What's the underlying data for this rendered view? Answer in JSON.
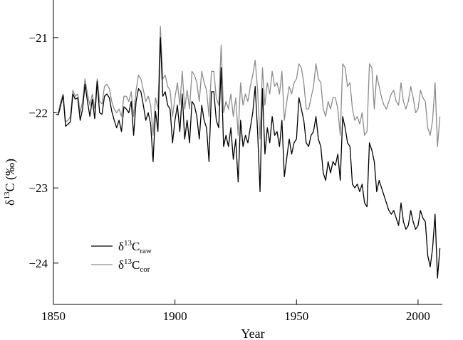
{
  "chart_data": {
    "type": "line",
    "xlabel": "Year",
    "ylabel": {
      "delta": "δ",
      "sup": "13",
      "base": "C (‰)"
    },
    "xlim": [
      1850,
      2010
    ],
    "ylim": [
      -24.55,
      -20.5
    ],
    "x_ticks": [
      1850,
      1900,
      1950,
      2000
    ],
    "x_tick_labels": [
      "1850",
      "1900",
      "1950",
      "2000"
    ],
    "y_ticks": [
      -21,
      -22,
      -23,
      -24
    ],
    "y_tick_labels": [
      "−21",
      "−22",
      "−23",
      "−24"
    ],
    "grid": false,
    "legend_position": "bottom-left",
    "series": [
      {
        "name": "δ13Craw",
        "legend": {
          "delta": "δ",
          "sup": "13",
          "base": "C",
          "sub": "raw"
        },
        "color": "#000000",
        "x": [
          1851,
          1852,
          1853,
          1854,
          1855,
          1856,
          1857,
          1858,
          1859,
          1860,
          1861,
          1862,
          1863,
          1864,
          1865,
          1866,
          1867,
          1868,
          1869,
          1870,
          1871,
          1872,
          1873,
          1874,
          1875,
          1876,
          1877,
          1878,
          1879,
          1880,
          1881,
          1882,
          1883,
          1884,
          1885,
          1886,
          1887,
          1888,
          1889,
          1890,
          1891,
          1892,
          1893,
          1894,
          1895,
          1896,
          1897,
          1898,
          1899,
          1900,
          1901,
          1902,
          1903,
          1904,
          1905,
          1906,
          1907,
          1908,
          1909,
          1910,
          1911,
          1912,
          1913,
          1914,
          1915,
          1916,
          1917,
          1918,
          1919,
          1920,
          1921,
          1922,
          1923,
          1924,
          1925,
          1926,
          1927,
          1928,
          1929,
          1930,
          1931,
          1932,
          1933,
          1934,
          1935,
          1936,
          1937,
          1938,
          1939,
          1940,
          1941,
          1942,
          1943,
          1944,
          1945,
          1946,
          1947,
          1948,
          1949,
          1950,
          1951,
          1952,
          1953,
          1954,
          1955,
          1956,
          1957,
          1958,
          1959,
          1960,
          1961,
          1962,
          1963,
          1964,
          1965,
          1966,
          1967,
          1968,
          1969,
          1970,
          1971,
          1972,
          1973,
          1974,
          1975,
          1976,
          1977,
          1978,
          1979,
          1980,
          1981,
          1982,
          1983,
          1984,
          1985,
          1986,
          1987,
          1988,
          1989,
          1990,
          1991,
          1992,
          1993,
          1994,
          1995,
          1996,
          1997,
          1998,
          1999,
          2000,
          2001,
          2002,
          2003,
          2004,
          2005,
          2006,
          2007,
          2008,
          2009
        ],
        "y": [
          -22.02,
          -22.03,
          -21.9,
          -21.77,
          -22.18,
          -22.15,
          -22.12,
          -21.75,
          -21.82,
          -21.8,
          -22.1,
          -21.95,
          -21.62,
          -21.85,
          -22.05,
          -21.82,
          -22.08,
          -21.58,
          -22.0,
          -22.02,
          -21.78,
          -21.75,
          -21.8,
          -21.98,
          -22.1,
          -22.2,
          -22.1,
          -22.25,
          -21.92,
          -21.95,
          -22.0,
          -21.85,
          -22.3,
          -21.85,
          -21.68,
          -21.72,
          -21.9,
          -22.1,
          -22.0,
          -22.15,
          -22.65,
          -21.98,
          -22.25,
          -21.0,
          -21.78,
          -21.72,
          -21.9,
          -21.95,
          -22.4,
          -22.1,
          -21.9,
          -22.25,
          -21.75,
          -22.35,
          -22.1,
          -22.4,
          -21.85,
          -21.9,
          -22.05,
          -22.35,
          -21.9,
          -22.1,
          -22.2,
          -22.65,
          -21.72,
          -21.72,
          -22.1,
          -22.2,
          -21.4,
          -22.45,
          -22.3,
          -22.45,
          -22.2,
          -22.62,
          -22.35,
          -22.92,
          -22.1,
          -22.45,
          -22.3,
          -22.4,
          -22.2,
          -22.0,
          -21.65,
          -22.25,
          -23.05,
          -21.68,
          -22.55,
          -22.2,
          -22.4,
          -22.05,
          -22.3,
          -22.25,
          -22.45,
          -22.1,
          -22.85,
          -22.6,
          -22.35,
          -22.55,
          -22.4,
          -22.35,
          -21.8,
          -21.95,
          -22.1,
          -22.4,
          -22.45,
          -22.3,
          -22.25,
          -22.05,
          -22.35,
          -22.45,
          -22.8,
          -22.9,
          -22.65,
          -22.8,
          -22.65,
          -22.7,
          -22.55,
          -22.9,
          -22.05,
          -22.2,
          -22.4,
          -22.45,
          -22.95,
          -23.0,
          -22.95,
          -23.05,
          -22.95,
          -23.2,
          -23.25,
          -22.4,
          -22.5,
          -22.65,
          -23.05,
          -22.9,
          -23.0,
          -23.1,
          -23.2,
          -23.3,
          -23.35,
          -23.3,
          -23.4,
          -23.5,
          -23.2,
          -23.45,
          -23.55,
          -23.5,
          -23.3,
          -23.45,
          -23.55,
          -23.5,
          -23.3,
          -23.4,
          -23.45,
          -23.9,
          -24.05,
          -23.8,
          -23.35,
          -24.2,
          -23.8
        ]
      },
      {
        "name": "δ13Ccor",
        "legend": {
          "delta": "δ",
          "sup": "13",
          "base": "C",
          "sub": "cor"
        },
        "color": "#8c8c8c",
        "x": [
          1851,
          1852,
          1853,
          1854,
          1855,
          1856,
          1857,
          1858,
          1859,
          1860,
          1861,
          1862,
          1863,
          1864,
          1865,
          1866,
          1867,
          1868,
          1869,
          1870,
          1871,
          1872,
          1873,
          1874,
          1875,
          1876,
          1877,
          1878,
          1879,
          1880,
          1881,
          1882,
          1883,
          1884,
          1885,
          1886,
          1887,
          1888,
          1889,
          1890,
          1891,
          1892,
          1893,
          1894,
          1895,
          1896,
          1897,
          1898,
          1899,
          1900,
          1901,
          1902,
          1903,
          1904,
          1905,
          1906,
          1907,
          1908,
          1909,
          1910,
          1911,
          1912,
          1913,
          1914,
          1915,
          1916,
          1917,
          1918,
          1919,
          1920,
          1921,
          1922,
          1923,
          1924,
          1925,
          1926,
          1927,
          1928,
          1929,
          1930,
          1931,
          1932,
          1933,
          1934,
          1935,
          1936,
          1937,
          1938,
          1939,
          1940,
          1941,
          1942,
          1943,
          1944,
          1945,
          1946,
          1947,
          1948,
          1949,
          1950,
          1951,
          1952,
          1953,
          1954,
          1955,
          1956,
          1957,
          1958,
          1959,
          1960,
          1961,
          1962,
          1963,
          1964,
          1965,
          1966,
          1967,
          1968,
          1969,
          1970,
          1971,
          1972,
          1973,
          1974,
          1975,
          1976,
          1977,
          1978,
          1979,
          1980,
          1981,
          1982,
          1983,
          1984,
          1985,
          1986,
          1987,
          1988,
          1989,
          1990,
          1991,
          1992,
          1993,
          1994,
          1995,
          1996,
          1997,
          1998,
          1999,
          2000,
          2001,
          2002,
          2003,
          2004,
          2005,
          2006,
          2007,
          2008,
          2009
        ],
        "y": [
          -22.0,
          -22.0,
          -21.85,
          -21.75,
          -22.12,
          -22.1,
          -22.05,
          -21.7,
          -21.78,
          -21.75,
          -22.0,
          -21.85,
          -21.55,
          -21.75,
          -21.9,
          -21.75,
          -21.95,
          -21.55,
          -21.85,
          -21.88,
          -21.65,
          -21.62,
          -21.68,
          -21.85,
          -21.95,
          -22.0,
          -21.95,
          -22.05,
          -21.78,
          -21.78,
          -21.85,
          -21.72,
          -22.05,
          -21.7,
          -21.5,
          -21.55,
          -21.7,
          -21.85,
          -21.78,
          -21.9,
          -22.3,
          -21.8,
          -21.95,
          -20.85,
          -21.55,
          -21.5,
          -21.65,
          -21.7,
          -22.05,
          -21.8,
          -21.6,
          -21.9,
          -21.45,
          -21.95,
          -21.7,
          -21.95,
          -21.45,
          -21.5,
          -21.6,
          -21.85,
          -21.45,
          -21.6,
          -21.7,
          -22.05,
          -21.45,
          -21.45,
          -21.8,
          -21.9,
          -21.1,
          -22.0,
          -21.85,
          -21.95,
          -21.75,
          -22.05,
          -21.8,
          -22.3,
          -21.6,
          -21.9,
          -21.75,
          -21.85,
          -21.65,
          -21.5,
          -21.3,
          -21.7,
          -22.35,
          -21.4,
          -21.9,
          -21.6,
          -21.75,
          -21.45,
          -21.65,
          -21.6,
          -21.75,
          -21.45,
          -22.1,
          -21.85,
          -21.65,
          -21.75,
          -21.6,
          -21.55,
          -21.35,
          -21.4,
          -21.6,
          -21.95,
          -21.95,
          -21.8,
          -21.65,
          -21.35,
          -21.55,
          -21.6,
          -21.95,
          -22.05,
          -21.85,
          -21.95,
          -21.8,
          -21.8,
          -21.95,
          -22.3,
          -21.35,
          -21.4,
          -21.65,
          -21.6,
          -21.95,
          -22.1,
          -22.05,
          -22.15,
          -22.0,
          -22.3,
          -22.25,
          -21.35,
          -21.4,
          -21.95,
          -21.5,
          -21.65,
          -21.8,
          -21.9,
          -21.95,
          -21.85,
          -21.75,
          -21.7,
          -21.85,
          -21.9,
          -21.6,
          -21.85,
          -21.95,
          -21.85,
          -21.65,
          -21.8,
          -22.0,
          -21.95,
          -21.7,
          -21.8,
          -21.85,
          -22.2,
          -22.3,
          -22.1,
          -21.6,
          -22.45,
          -22.05
        ]
      }
    ]
  }
}
